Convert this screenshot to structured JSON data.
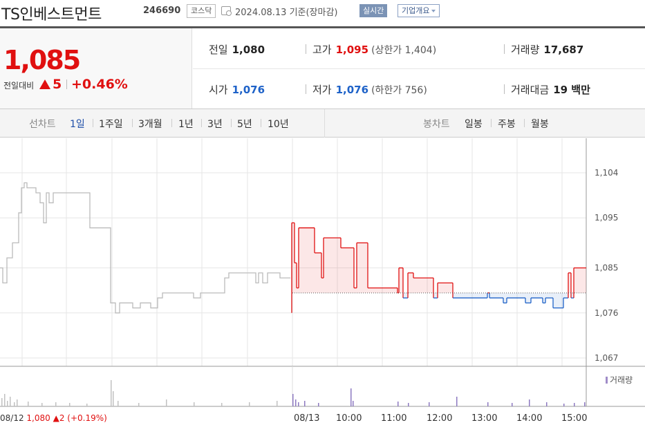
{
  "header": {
    "company": "TS인베스트먼트",
    "code": "246690",
    "market": "코스닥",
    "date_text": "2024.08.13 기준(장마감)",
    "live_label": "실시간",
    "overview_label": "기업개요"
  },
  "quote": {
    "price": "1,085",
    "change_label": "전일대비",
    "change_value": "5",
    "change_pct": "+0.46%",
    "prev_close_label": "전일",
    "prev_close": "1,080",
    "high_label": "고가",
    "high": "1,095",
    "upper_limit": "(상한가 1,404)",
    "volume_label": "거래량",
    "volume": "17,687",
    "open_label": "시가",
    "open": "1,076",
    "low_label": "저가",
    "low": "1,076",
    "lower_limit": "(하한가 756)",
    "value_label": "거래대금",
    "value": "19 백만"
  },
  "tabs": {
    "line_label": "선차트",
    "periods": [
      "1일",
      "1주일",
      "3개월",
      "1년",
      "3년",
      "5년",
      "10년"
    ],
    "active_period": "1일",
    "candle_label": "봉차트",
    "candles": [
      "일봉",
      "주봉",
      "월봉"
    ]
  },
  "chart": {
    "volume_legend": "거래량",
    "prev_day": "08/12",
    "prev_info": "1,080 ▲2 (+0.19%)",
    "today": "08/13",
    "time_labels": [
      "10:00",
      "11:00",
      "12:00",
      "13:00",
      "14:00",
      "15:00"
    ],
    "y_labels": [
      "1,104",
      "1,095",
      "1,085",
      "1,076",
      "1,067"
    ],
    "colors": {
      "up": "#e01010",
      "down": "#1e62c8",
      "prev": "#bbbbbb",
      "volume": "#8c78c0"
    }
  },
  "chart_data": {
    "type": "line",
    "ylim": [
      1067,
      1104
    ],
    "y_ticks": [
      1104,
      1095,
      1085,
      1076,
      1067
    ],
    "x_ticks": [
      "08/12",
      "08/13",
      "10:00",
      "11:00",
      "12:00",
      "13:00",
      "14:00",
      "15:00"
    ],
    "baseline": 1080,
    "series": [
      {
        "values": [
          [
            0,
            1085
          ],
          [
            4,
            1085
          ],
          [
            4,
            1082
          ],
          [
            10,
            1082
          ],
          [
            10,
            1087
          ],
          [
            18,
            1087
          ],
          [
            18,
            1090
          ],
          [
            27,
            1090
          ],
          [
            27,
            1096
          ],
          [
            31,
            1096
          ],
          [
            31,
            1101
          ],
          [
            35,
            1101
          ],
          [
            35,
            1102
          ],
          [
            39,
            1102
          ],
          [
            39,
            1101
          ],
          [
            44,
            1101
          ],
          [
            44,
            1101
          ],
          [
            52,
            1101
          ],
          [
            52,
            1100
          ],
          [
            58,
            1100
          ],
          [
            58,
            1098
          ],
          [
            63,
            1098
          ],
          [
            63,
            1094
          ],
          [
            67,
            1094
          ],
          [
            67,
            1100
          ],
          [
            71,
            1100
          ],
          [
            71,
            1098
          ],
          [
            77,
            1098
          ],
          [
            77,
            1100
          ],
          [
            125,
            1100
          ],
          [
            125,
            1100
          ],
          [
            130,
            1100
          ],
          [
            130,
            1093
          ],
          [
            160,
            1093
          ],
          [
            160,
            1078
          ],
          [
            167,
            1078
          ],
          [
            167,
            1076
          ],
          [
            173,
            1076
          ],
          [
            173,
            1078
          ],
          [
            192,
            1078
          ],
          [
            192,
            1077
          ],
          [
            203,
            1077
          ],
          [
            203,
            1078
          ],
          [
            218,
            1078
          ],
          [
            218,
            1077
          ],
          [
            228,
            1077
          ],
          [
            228,
            1079
          ],
          [
            235,
            1079
          ],
          [
            235,
            1080
          ],
          [
            280,
            1080
          ],
          [
            280,
            1079
          ],
          [
            290,
            1079
          ],
          [
            290,
            1080
          ],
          [
            325,
            1080
          ],
          [
            325,
            1083
          ],
          [
            331,
            1083
          ],
          [
            331,
            1084
          ],
          [
            370,
            1084
          ],
          [
            370,
            1082
          ],
          [
            374,
            1082
          ],
          [
            374,
            1084
          ],
          [
            380,
            1084
          ],
          [
            380,
            1082
          ],
          [
            387,
            1082
          ],
          [
            387,
            1084
          ],
          [
            405,
            1084
          ],
          [
            405,
            1083
          ],
          [
            420,
            1083
          ]
        ]
      },
      {
        "values": [
          [
            422,
            1076
          ],
          [
            422,
            1094
          ],
          [
            426,
            1094
          ],
          [
            426,
            1086
          ],
          [
            429,
            1086
          ],
          [
            429,
            1081
          ],
          [
            432,
            1081
          ],
          [
            432,
            1093
          ],
          [
            455,
            1093
          ],
          [
            455,
            1088
          ],
          [
            465,
            1088
          ],
          [
            465,
            1083
          ],
          [
            468,
            1083
          ],
          [
            468,
            1091
          ],
          [
            493,
            1091
          ],
          [
            493,
            1089
          ],
          [
            512,
            1089
          ],
          [
            512,
            1081
          ],
          [
            516,
            1081
          ],
          [
            516,
            1090
          ],
          [
            532,
            1090
          ],
          [
            532,
            1081
          ],
          [
            575,
            1081
          ],
          [
            575,
            1080
          ],
          [
            577,
            1080
          ],
          [
            577,
            1085
          ],
          [
            583,
            1085
          ],
          [
            583,
            1079
          ],
          [
            590,
            1079
          ],
          [
            590,
            1084
          ],
          [
            598,
            1084
          ],
          [
            598,
            1083
          ],
          [
            627,
            1083
          ],
          [
            627,
            1079
          ],
          [
            633,
            1079
          ],
          [
            633,
            1082
          ],
          [
            655,
            1082
          ],
          [
            655,
            1079
          ],
          [
            705,
            1079
          ],
          [
            705,
            1080
          ],
          [
            708,
            1080
          ],
          [
            708,
            1079
          ],
          [
            728,
            1079
          ],
          [
            728,
            1078
          ],
          [
            733,
            1078
          ],
          [
            733,
            1079
          ],
          [
            760,
            1079
          ],
          [
            760,
            1078
          ],
          [
            768,
            1078
          ],
          [
            768,
            1079
          ],
          [
            785,
            1079
          ],
          [
            785,
            1078
          ],
          [
            789,
            1078
          ],
          [
            789,
            1079
          ],
          [
            800,
            1079
          ],
          [
            800,
            1077
          ],
          [
            815,
            1077
          ],
          [
            815,
            1079
          ],
          [
            822,
            1079
          ],
          [
            822,
            1084
          ],
          [
            826,
            1084
          ],
          [
            826,
            1079
          ],
          [
            830,
            1079
          ],
          [
            830,
            1085
          ],
          [
            848,
            1085
          ]
        ]
      }
    ]
  }
}
